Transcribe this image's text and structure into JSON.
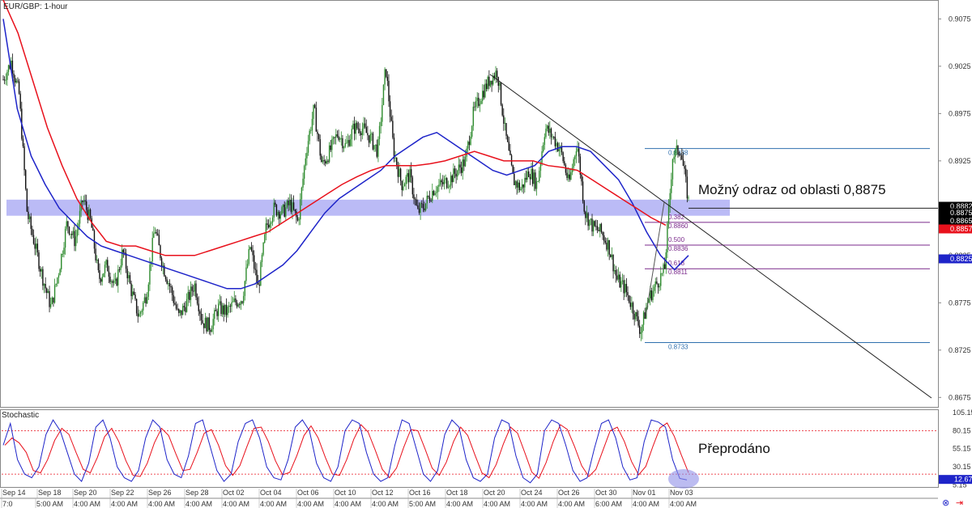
{
  "chart_data": {
    "type": "candlestick",
    "title": "EUR/GBP: 1-hour",
    "ylim": [
      0.8665,
      0.9095
    ],
    "price_ticks": [
      "0.9075",
      "0.9025",
      "0.8975",
      "0.8925",
      "0.8875",
      "0.8825",
      "0.8775",
      "0.8725",
      "0.8675"
    ],
    "price_tags": [
      {
        "label": "0.8882",
        "value": 0.8882,
        "color": "#000000",
        "text_color": "#ffffff"
      },
      {
        "label": "0.8875",
        "value": 0.8875,
        "color": "#000000",
        "text_color": "#ffffff"
      },
      {
        "label": "0.8865",
        "value": 0.8865,
        "color": "#000000",
        "text_color": "#ffffff"
      },
      {
        "label": "0.8857",
        "value": 0.8857,
        "color": "#e8111c",
        "text_color": "#ffffff"
      },
      {
        "label": "0.8825",
        "value": 0.8825,
        "color": "#1e24c9",
        "text_color": "#ffffff"
      }
    ],
    "x_ticks": [
      "Sep 14",
      "Sep 18",
      "Sep 20",
      "Sep 22",
      "Sep 26",
      "Sep 28",
      "Oct 02",
      "Oct 04",
      "Oct 06",
      "Oct 10",
      "Oct 12",
      "Oct 16",
      "Oct 18",
      "Oct 20",
      "Oct 24",
      "Oct 26",
      "Oct 30",
      "Nov 01",
      "Nov 03"
    ],
    "time_ticks": [
      "7:0",
      "5:00 AM",
      "4:00 AM",
      "4:00 AM",
      "4:00 AM",
      "4:00 AM",
      "4:00 AM",
      "4:00 AM",
      "4:00 AM",
      "4:00 AM",
      "4:00 AM",
      "5:00 AM",
      "4:00 AM",
      "4:00 AM",
      "4:00 AM",
      "4:00 AM",
      "6:00 AM",
      "4:00 AM",
      "4:00 AM"
    ],
    "price_path": [
      0.9011,
      0.903,
      0.8995,
      0.887,
      0.8835,
      0.88,
      0.877,
      0.881,
      0.886,
      0.884,
      0.8885,
      0.886,
      0.88,
      0.8815,
      0.879,
      0.883,
      0.879,
      0.876,
      0.8785,
      0.8855,
      0.8815,
      0.879,
      0.876,
      0.8775,
      0.8795,
      0.8755,
      0.875,
      0.877,
      0.8765,
      0.8775,
      0.878,
      0.8835,
      0.879,
      0.8855,
      0.8875,
      0.887,
      0.888,
      0.886,
      0.8935,
      0.898,
      0.892,
      0.8935,
      0.8955,
      0.894,
      0.896,
      0.896,
      0.895,
      0.8935,
      0.9025,
      0.8935,
      0.89,
      0.891,
      0.887,
      0.888,
      0.8895,
      0.89,
      0.8905,
      0.8915,
      0.8925,
      0.8975,
      0.8995,
      0.901,
      0.902,
      0.8955,
      0.8905,
      0.8895,
      0.8915,
      0.89,
      0.896,
      0.895,
      0.8935,
      0.89,
      0.8945,
      0.887,
      0.8855,
      0.885,
      0.8835,
      0.88,
      0.879,
      0.877,
      0.8745,
      0.878,
      0.8795,
      0.881,
      0.893,
      0.8938,
      0.8882
    ],
    "series": [
      {
        "name": "",
        "color": "#1e24c9",
        "values": [
          0.9075,
          0.898,
          0.893,
          0.89,
          0.8875,
          0.886,
          0.8845,
          0.8835,
          0.883,
          0.8825,
          0.882,
          0.8815,
          0.881,
          0.8805,
          0.88,
          0.8795,
          0.879,
          0.879,
          0.8795,
          0.8805,
          0.8815,
          0.883,
          0.885,
          0.887,
          0.8885,
          0.8895,
          0.8905,
          0.8915,
          0.893,
          0.894,
          0.895,
          0.8955,
          0.8945,
          0.8935,
          0.8925,
          0.8915,
          0.891,
          0.8915,
          0.892,
          0.8935,
          0.894,
          0.894,
          0.8935,
          0.892,
          0.8905,
          0.888,
          0.885,
          0.8825,
          0.881,
          0.8825
        ]
      },
      {
        "name": "",
        "color": "#e8111c",
        "values": [
          0.9095,
          0.906,
          0.901,
          0.896,
          0.892,
          0.8885,
          0.886,
          0.884,
          0.8835,
          0.8835,
          0.883,
          0.8825,
          0.8825,
          0.8825,
          0.883,
          0.8835,
          0.884,
          0.8845,
          0.885,
          0.886,
          0.887,
          0.888,
          0.889,
          0.89,
          0.8908,
          0.8915,
          0.892,
          0.892,
          0.892,
          0.8922,
          0.8925,
          0.893,
          0.8935,
          0.893,
          0.8925,
          0.8925,
          0.8925,
          0.892,
          0.8918,
          0.8915,
          0.8905,
          0.8895,
          0.8885,
          0.8875,
          0.8865,
          0.8857
        ]
      }
    ],
    "support_zone": [
      0.8867,
      0.8884
    ],
    "fibonacci": [
      {
        "ratio": "",
        "label": "0.8938",
        "value": 0.8938
      },
      {
        "ratio": "0.382",
        "label": "0.8860",
        "value": 0.886
      },
      {
        "ratio": "0.500",
        "label": "0.8836",
        "value": 0.8836
      },
      {
        "ratio": "0.618",
        "label": "0.8811",
        "value": 0.8811
      },
      {
        "ratio": "",
        "label": "0.8733",
        "value": 0.8733
      }
    ],
    "annotation_main": "Možný odraz od oblasti 0,8875",
    "stochastic": {
      "title": "Stochastic",
      "ylim": [
        0,
        105.15
      ],
      "ticks": [
        "105.15",
        "80.15",
        "55.15",
        "30.15",
        "5.15"
      ],
      "current_label": "12.67",
      "current_value": 12.67,
      "upper_level": 80,
      "lower_level": 20,
      "k_color": "#1e24c9",
      "d_color": "#e8111c",
      "annotation": "Přeprodáno",
      "k_values": [
        60,
        90,
        40,
        20,
        15,
        30,
        75,
        95,
        80,
        50,
        20,
        10,
        35,
        85,
        95,
        70,
        30,
        15,
        10,
        25,
        70,
        95,
        85,
        40,
        20,
        15,
        45,
        90,
        95,
        60,
        25,
        10,
        20,
        65,
        90,
        95,
        70,
        30,
        15,
        12,
        40,
        85,
        95,
        80,
        35,
        15,
        10,
        30,
        80,
        95,
        90,
        50,
        20,
        10,
        15,
        60,
        95,
        90,
        55,
        20,
        10,
        25,
        75,
        95,
        85,
        40,
        15,
        10,
        20,
        70,
        95,
        90,
        45,
        15,
        8,
        20,
        80,
        95,
        90,
        60,
        25,
        10,
        15,
        55,
        90,
        95,
        70,
        30,
        12,
        15,
        65,
        95,
        92,
        85,
        40,
        14,
        12
      ]
    }
  }
}
